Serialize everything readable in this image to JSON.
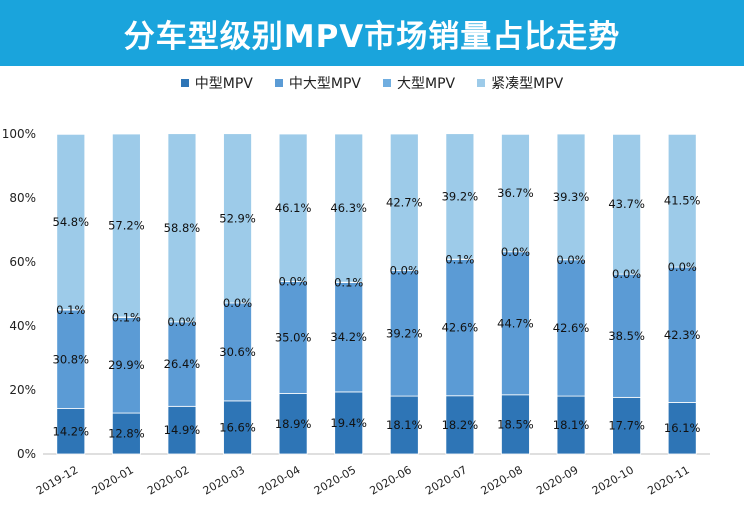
{
  "header": {
    "title": "分车型级别MPV市场销量占比走势"
  },
  "colors": {
    "title_bg": "#1aa4dc",
    "series": [
      "#2e75b6",
      "#5b9bd5",
      "#70aee0",
      "#9dcbe9"
    ],
    "axis": "#bfbfbf",
    "label": "#111111"
  },
  "chart_data": {
    "type": "bar",
    "stacked": true,
    "title": "分车型级别MPV市场销量占比走势",
    "categories": [
      "2019-12",
      "2020-01",
      "2020-02",
      "2020-03",
      "2020-04",
      "2020-05",
      "2020-06",
      "2020-07",
      "2020-08",
      "2020-09",
      "2020-10",
      "2020-11"
    ],
    "series": [
      {
        "name": "中型MPV",
        "values": [
          14.2,
          12.8,
          14.9,
          16.6,
          18.9,
          19.4,
          18.1,
          18.2,
          18.5,
          18.1,
          17.7,
          16.1
        ],
        "labels": [
          "14.2%",
          "12.8%",
          "14.9%",
          "16.6%",
          "18.9%",
          "19.4%",
          "18.1%",
          "18.2%",
          "18.5%",
          "18.1%",
          "17.7%",
          "16.1%"
        ]
      },
      {
        "name": "中大型MPV",
        "values": [
          30.8,
          29.9,
          26.4,
          30.6,
          35.0,
          34.2,
          39.2,
          42.6,
          44.7,
          42.6,
          38.5,
          42.3
        ],
        "labels": [
          "30.8%",
          "29.9%",
          "26.4%",
          "30.6%",
          "35.0%",
          "34.2%",
          "39.2%",
          "42.6%",
          "44.7%",
          "42.6%",
          "38.5%",
          "42.3%"
        ]
      },
      {
        "name": "大型MPV",
        "values": [
          0.1,
          0.1,
          0.0,
          0.0,
          0.0,
          0.1,
          0.0,
          0.1,
          0.0,
          0.0,
          0.0,
          0.0
        ],
        "labels": [
          "0.1%",
          "0.1%",
          "0.0%",
          "0.0%",
          "0.0%",
          "0.1%",
          "0.0%",
          "0.1%",
          "0.0%",
          "0.0%",
          "0.0%",
          "0.0%"
        ]
      },
      {
        "name": "紧凑型MPV",
        "values": [
          54.8,
          57.2,
          58.8,
          52.9,
          46.1,
          46.3,
          42.7,
          39.2,
          36.7,
          39.3,
          43.7,
          41.5
        ],
        "labels": [
          "54.8%",
          "57.2%",
          "58.8%",
          "52.9%",
          "46.1%",
          "46.3%",
          "42.7%",
          "39.2%",
          "36.7%",
          "39.3%",
          "43.7%",
          "41.5%"
        ]
      }
    ],
    "ylim": [
      0,
      100
    ],
    "yticks": [
      0,
      20,
      40,
      60,
      80,
      100
    ],
    "ytick_labels": [
      "0%",
      "20%",
      "40%",
      "60%",
      "80%",
      "100%"
    ],
    "legend_position": "top-center",
    "grid": false
  }
}
